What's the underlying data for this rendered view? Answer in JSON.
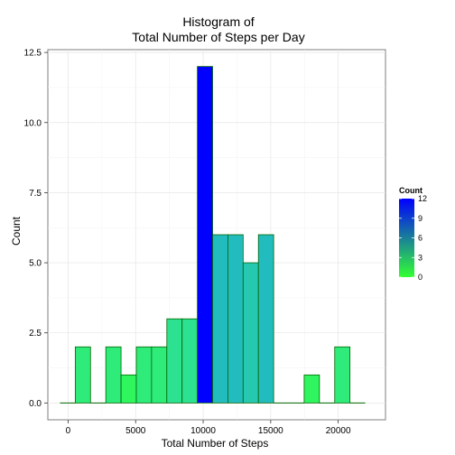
{
  "chart_data": {
    "type": "bar",
    "title_lines": [
      "Histogram of",
      "Total Number of Steps per Day"
    ],
    "xlabel": "Total Number of Steps",
    "ylabel": "Count",
    "xlim": [
      -1500,
      23500
    ],
    "ylim": [
      -0.6,
      12.6
    ],
    "x_ticks": [
      0,
      5000,
      10000,
      15000,
      20000
    ],
    "x_tick_labels": [
      "0",
      "5000",
      "10000",
      "15000",
      "20000"
    ],
    "y_ticks": [
      0,
      2.5,
      5,
      7.5,
      10,
      12.5
    ],
    "y_tick_labels": [
      "0.0",
      "2.5",
      "5.0",
      "7.5",
      "10.0",
      "12.5"
    ],
    "bin_width": 1130,
    "bin_start": -600,
    "counts": [
      0,
      2,
      0,
      2,
      1,
      2,
      2,
      3,
      3,
      12,
      6,
      6,
      5,
      6,
      0,
      0,
      1,
      0,
      2,
      0
    ],
    "grid": true,
    "bar_outline": "#006400",
    "gradient_low": "#33ff33",
    "gradient_high": "#0000ff",
    "legend": {
      "title": "Count",
      "placement": "right",
      "ticks": [
        0,
        3,
        6,
        9,
        12
      ],
      "tick_labels": [
        "0",
        "3",
        "6",
        "9",
        "12"
      ]
    }
  }
}
